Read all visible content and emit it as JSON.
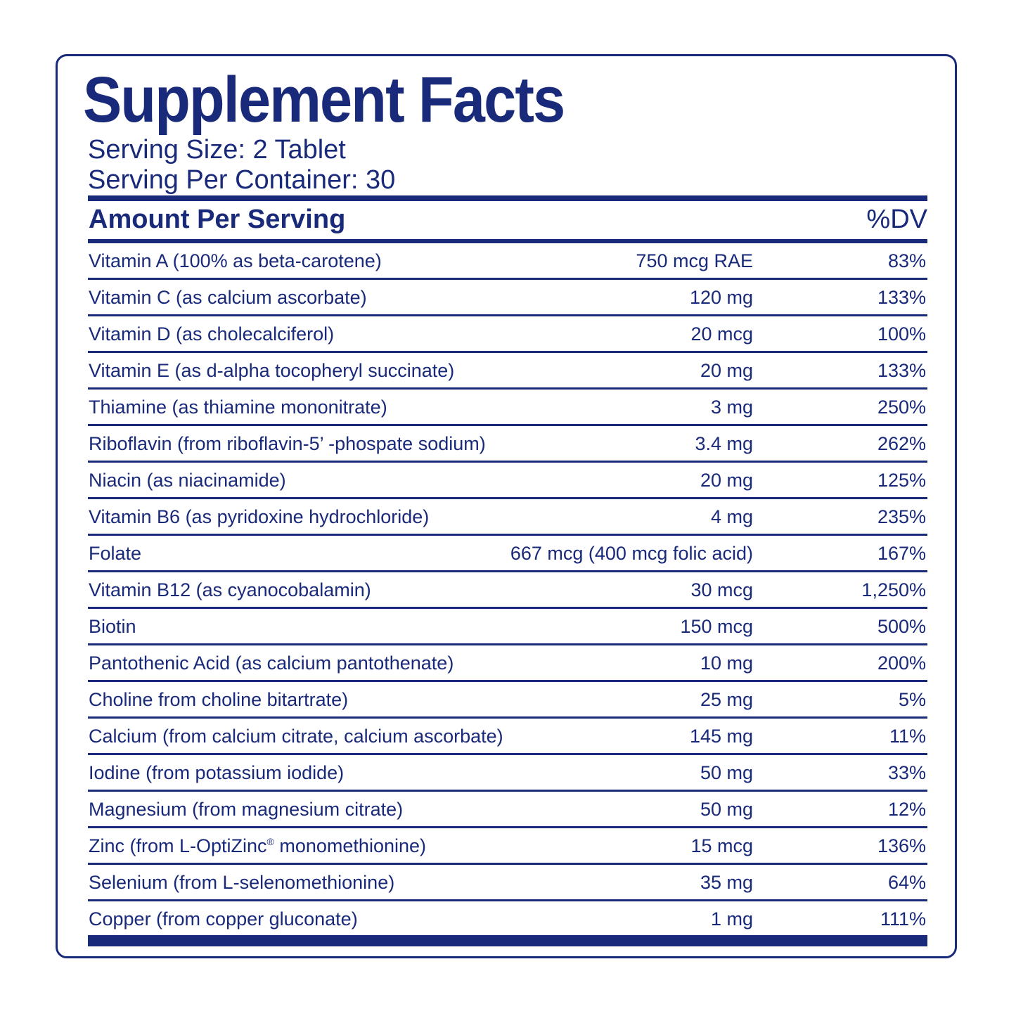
{
  "label": {
    "title": "Supplement Facts",
    "serving_size": "Serving Size: 2 Tablet",
    "servings_per_container": "Serving Per Container: 30",
    "header_left": "Amount Per Serving",
    "header_right": "%DV",
    "brand_color": "#1a2a7a"
  },
  "rows": [
    {
      "name": "Vitamin A (100% as beta-carotene)",
      "amount": "750 mcg RAE",
      "dv": "83%"
    },
    {
      "name": "Vitamin C (as calcium ascorbate)",
      "amount": "120 mg",
      "dv": "133%"
    },
    {
      "name": "Vitamin D (as cholecalciferol)",
      "amount": "20 mcg",
      "dv": "100%"
    },
    {
      "name": "Vitamin E (as d-alpha tocopheryl succinate)",
      "amount": "20 mg",
      "dv": "133%"
    },
    {
      "name": "Thiamine (as thiamine mononitrate)",
      "amount": "3 mg",
      "dv": "250%"
    },
    {
      "name": "Riboflavin (from riboflavin-5’ -phospate sodium)",
      "amount": "3.4 mg",
      "dv": "262%"
    },
    {
      "name": "Niacin (as niacinamide)",
      "amount": "20 mg",
      "dv": "125%"
    },
    {
      "name": "Vitamin B6 (as pyridoxine hydrochloride)",
      "amount": "4 mg",
      "dv": "235%"
    },
    {
      "name": "Folate",
      "amount": "667 mcg (400 mcg folic acid)",
      "dv": "167%"
    },
    {
      "name": "Vitamin B12 (as cyanocobalamin)",
      "amount": "30 mcg",
      "dv": "1,250%"
    },
    {
      "name": "Biotin",
      "amount": "150 mcg",
      "dv": "500%"
    },
    {
      "name": "Pantothenic Acid (as calcium pantothenate)",
      "amount": "10 mg",
      "dv": "200%"
    },
    {
      "name": "Choline from choline bitartrate)",
      "amount": "25 mg",
      "dv": "5%"
    },
    {
      "name": "Calcium (from calcium citrate, calcium ascorbate)",
      "amount": "145 mg",
      "dv": "11%"
    },
    {
      "name": "Iodine (from potassium iodide)",
      "amount": "50 mg",
      "dv": "33%"
    },
    {
      "name": "Magnesium (from magnesium citrate)",
      "amount": "50 mg",
      "dv": "12%"
    },
    {
      "name": "Zinc (from L-OptiZinc",
      "name_mark": "®",
      "name_suffix": " monomethionine)",
      "amount": "15 mcg",
      "dv": "136%"
    },
    {
      "name": "Selenium (from L-selenomethionine)",
      "amount": "35 mg",
      "dv": "64%"
    },
    {
      "name": "Copper (from copper gluconate)",
      "amount": "1 mg",
      "dv": "111%"
    }
  ]
}
